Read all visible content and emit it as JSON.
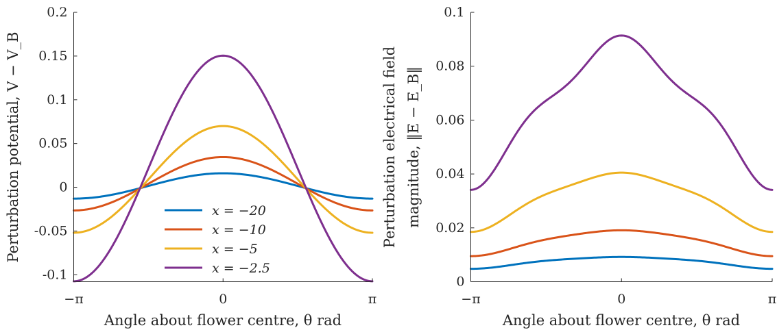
{
  "chart_data": [
    {
      "type": "line",
      "xlabel": "Angle about flower centre, θ rad",
      "ylabel": [
        "Perturbation potential, V − V_B"
      ],
      "xlim": [
        -3.14159,
        3.14159
      ],
      "ylim": [
        -0.108,
        0.2
      ],
      "x_ticks": [
        "−π",
        "0",
        "π"
      ],
      "y_ticks": [
        "0.2",
        "0.15",
        "0.1",
        "0.05",
        "0",
        "-0.05",
        "-0.1"
      ],
      "grid": false,
      "legend_position": "bottom-center",
      "series": [
        {
          "name": "x = −20",
          "color": "#0072BD",
          "amp": 0.0145,
          "offset": 0.0015,
          "x": [
            -3.1416,
            -1.5708,
            0,
            1.5708,
            3.1416
          ],
          "y": [
            -0.013,
            0.0015,
            0.016,
            0.0015,
            -0.013
          ]
        },
        {
          "name": "x = −10",
          "color": "#D95319",
          "amp": 0.0305,
          "offset": 0.004,
          "x": [
            -3.1416,
            -1.5708,
            0,
            1.5708,
            3.1416
          ],
          "y": [
            -0.0265,
            0.004,
            0.0345,
            0.004,
            -0.0265
          ]
        },
        {
          "name": "x = −5",
          "color": "#EDB120",
          "amp": 0.061,
          "offset": 0.009,
          "x": [
            -3.1416,
            -1.5708,
            0,
            1.5708,
            3.1416
          ],
          "y": [
            -0.052,
            0.009,
            0.07,
            0.009,
            -0.052
          ]
        },
        {
          "name": "x = −2.5",
          "color": "#7E2F8E",
          "amp": 0.129,
          "offset": 0.0215,
          "x": [
            -3.1416,
            -1.5708,
            0,
            1.5708,
            3.1416
          ],
          "y": [
            -0.108,
            0.0215,
            0.151,
            0.0215,
            -0.108
          ]
        }
      ]
    },
    {
      "type": "line",
      "xlabel": "Angle about flower centre, θ rad",
      "ylabel": [
        "Perturbation electrical field",
        "magnitude, ‖E − E_B‖"
      ],
      "xlim": [
        -3.14159,
        3.14159
      ],
      "ylim": [
        0,
        0.1
      ],
      "x_ticks": [
        "−π",
        "0",
        "π"
      ],
      "y_ticks": [
        "0.1",
        "0.08",
        "0.06",
        "0.04",
        "0.02",
        "0"
      ],
      "grid": false,
      "series": [
        {
          "name": "x = −20",
          "color": "#0072BD",
          "base": 0.0074,
          "a": 0.00205,
          "b": -0.0004,
          "c": 0.00015,
          "x": [
            -3.1416,
            -1.5708,
            0,
            1.5708,
            3.1416
          ],
          "y": [
            0.0053,
            0.0074,
            0.0096,
            0.0074,
            0.0053
          ]
        },
        {
          "name": "x = −10",
          "color": "#D95319",
          "base": 0.015,
          "a": 0.0045,
          "b": -0.0007,
          "c": 0.0003,
          "x": [
            -3.1416,
            -1.5708,
            0,
            1.5708,
            3.1416
          ],
          "y": [
            0.0105,
            0.015,
            0.0195,
            0.015,
            0.0105
          ]
        },
        {
          "name": "x = −5",
          "color": "#EDB120",
          "base": 0.031,
          "a": 0.0101,
          "b": -0.0015,
          "c": 0.0009,
          "x": [
            -3.1416,
            -1.5708,
            0,
            1.5708,
            3.1416
          ],
          "y": [
            0.021,
            0.031,
            0.041,
            0.031,
            0.021
          ]
        },
        {
          "name": "x = −2.5",
          "color": "#7E2F8E",
          "base": 0.065,
          "a": 0.02475,
          "b": -0.00225,
          "c": 0.0039,
          "x": [
            -3.1416,
            -1.5708,
            0,
            1.5708,
            3.1416
          ],
          "y": [
            0.042,
            0.065,
            0.091,
            0.065,
            0.042
          ]
        }
      ]
    }
  ]
}
